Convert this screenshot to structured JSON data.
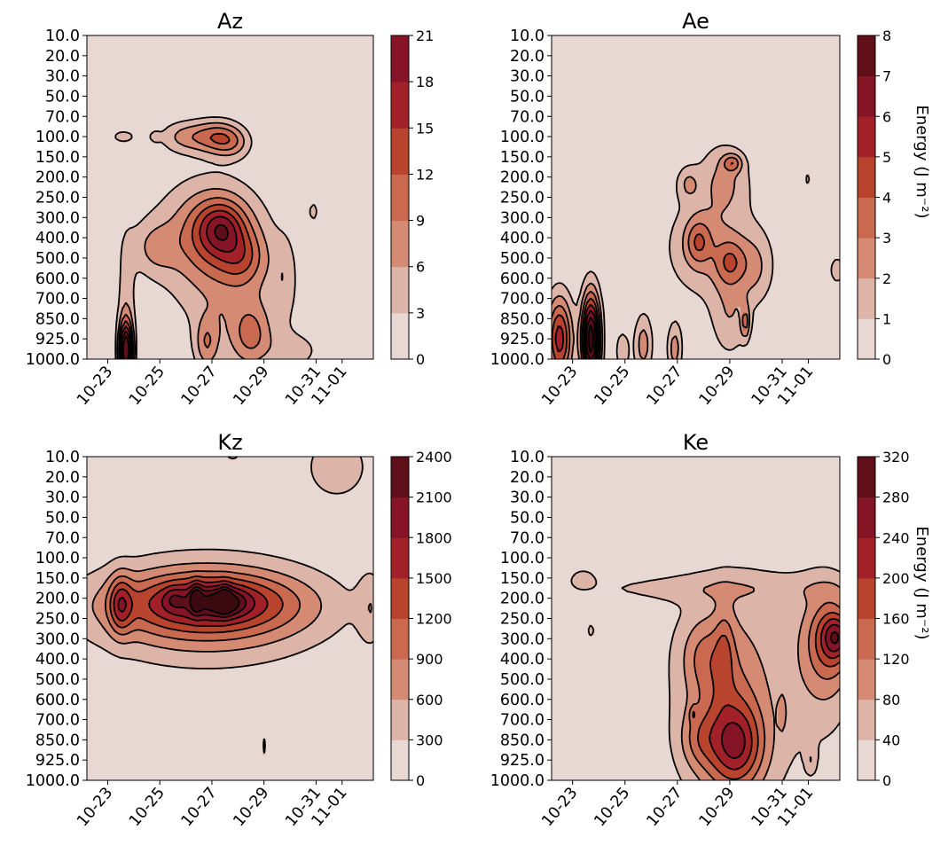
{
  "chart_data": [
    {
      "type": "heatmap",
      "title": "Az",
      "colorbar_ticks": [
        "0",
        "3",
        "6",
        "9",
        "12",
        "15",
        "18",
        "21"
      ],
      "colorbar_label": "",
      "pressure_ticks": [
        "10.0",
        "20.0",
        "30.0",
        "50.0",
        "70.0",
        "100.0",
        "150.0",
        "200.0",
        "250.0",
        "300.0",
        "400.0",
        "500.0",
        "600.0",
        "700.0",
        "850.0",
        "925.0",
        "1000.0"
      ],
      "date_ticks": [
        "10-23",
        "10-25",
        "10-27",
        "10-29",
        "10-31",
        "11-01"
      ],
      "date_positions": [
        0.8,
        2.8,
        4.8,
        6.8,
        8.8,
        9.8
      ],
      "x_range": [
        0,
        11
      ],
      "grid": [
        [
          0,
          0,
          0,
          0,
          0,
          0,
          0,
          0,
          0,
          0,
          0,
          0
        ],
        [
          0,
          0,
          0,
          0,
          0,
          0,
          0,
          0,
          0,
          0,
          0,
          0
        ],
        [
          0,
          0,
          0,
          0,
          0,
          0,
          0,
          0,
          0,
          0,
          0,
          0
        ],
        [
          0,
          0,
          0,
          0,
          0,
          0,
          0,
          0,
          0,
          0,
          0,
          0
        ],
        [
          0,
          0,
          0,
          0,
          0,
          0,
          0,
          0,
          0,
          0,
          0,
          0
        ],
        [
          0,
          0,
          0,
          0,
          0,
          0,
          0,
          0,
          0,
          0,
          0,
          0
        ],
        [
          0,
          0,
          0,
          0,
          0,
          0,
          0,
          0,
          0,
          0,
          0,
          0
        ],
        [
          0,
          0,
          0,
          0,
          0,
          0,
          0,
          0,
          0,
          0,
          0,
          0
        ],
        [
          0,
          0,
          0,
          0,
          0,
          0,
          0,
          0,
          0,
          0,
          0,
          0
        ],
        [
          0,
          0,
          0,
          0,
          0,
          0,
          0,
          0,
          0,
          0,
          0,
          0
        ],
        [
          0,
          0,
          0,
          0,
          0,
          0,
          0,
          0,
          0,
          0,
          0,
          0
        ],
        [
          0,
          0,
          0,
          0,
          0,
          0,
          0,
          0,
          0,
          0,
          0,
          0
        ],
        [
          0,
          0,
          0,
          0,
          0,
          0,
          0,
          0,
          0,
          0,
          0,
          0
        ],
        [
          0,
          0,
          0,
          0,
          0,
          0,
          0,
          0,
          0,
          0,
          0,
          0
        ],
        [
          0,
          0,
          0,
          0,
          0,
          0,
          0,
          0,
          0,
          0,
          0,
          0
        ],
        [
          0,
          0,
          0,
          0,
          0,
          0,
          0,
          0,
          0,
          0,
          0,
          0
        ],
        [
          0,
          0,
          0,
          0,
          0,
          0,
          0,
          0,
          0,
          0,
          0,
          0
        ]
      ],
      "blobs": [
        {
          "cx": 1.4,
          "cy": 5.0,
          "sx": 0.35,
          "sy": 0.25,
          "a": 4.5
        },
        {
          "cx": 2.6,
          "cy": 5.0,
          "sx": 0.15,
          "sy": 0.2,
          "a": 3.5
        },
        {
          "cx": 3.8,
          "cy": 5.0,
          "sx": 0.7,
          "sy": 0.55,
          "a": 6.5
        },
        {
          "cx": 5.0,
          "cy": 5.0,
          "sx": 0.6,
          "sy": 0.6,
          "a": 8.5
        },
        {
          "cx": 5.6,
          "cy": 5.3,
          "sx": 0.5,
          "sy": 0.55,
          "a": 5.5
        },
        {
          "cx": 4.5,
          "cy": 10.0,
          "sx": 1.6,
          "sy": 2.2,
          "a": 6.0
        },
        {
          "cx": 5.0,
          "cy": 9.7,
          "sx": 0.9,
          "sy": 1.3,
          "a": 8.0
        },
        {
          "cx": 5.2,
          "cy": 9.5,
          "sx": 0.55,
          "sy": 0.8,
          "a": 6.5
        },
        {
          "cx": 6.0,
          "cy": 11.0,
          "sx": 0.6,
          "sy": 0.9,
          "a": 5.5
        },
        {
          "cx": 2.6,
          "cy": 10.5,
          "sx": 0.6,
          "sy": 0.9,
          "a": 4.5
        },
        {
          "cx": 1.5,
          "cy": 14.0,
          "sx": 0.25,
          "sy": 2.8,
          "a": 4.5
        },
        {
          "cx": 1.5,
          "cy": 15.6,
          "sx": 0.18,
          "sy": 1.0,
          "a": 22.0
        },
        {
          "cx": 5.8,
          "cy": 13.5,
          "sx": 1.4,
          "sy": 2.8,
          "a": 4.5
        },
        {
          "cx": 6.3,
          "cy": 14.8,
          "sx": 0.5,
          "sy": 1.0,
          "a": 6.5
        },
        {
          "cx": 4.6,
          "cy": 15.2,
          "sx": 0.3,
          "sy": 0.9,
          "a": 6.5
        },
        {
          "cx": 8.7,
          "cy": 8.7,
          "sx": 0.15,
          "sy": 0.4,
          "a": 4.0
        },
        {
          "cx": 7.6,
          "cy": 12.0,
          "sx": 0.3,
          "sy": 1.4,
          "a": 3.5
        },
        {
          "cx": 8.0,
          "cy": 15.6,
          "sx": 0.8,
          "sy": 0.7,
          "a": 3.5
        }
      ],
      "levels": [
        0,
        3,
        6,
        9,
        12,
        15,
        18,
        21
      ]
    },
    {
      "type": "heatmap",
      "title": "Ae",
      "colorbar_ticks": [
        "0",
        "1",
        "2",
        "3",
        "4",
        "5",
        "6",
        "7",
        "8"
      ],
      "colorbar_label": "Energy  (J m⁻²)",
      "pressure_ticks": [
        "10.0",
        "20.0",
        "30.0",
        "50.0",
        "70.0",
        "100.0",
        "150.0",
        "200.0",
        "250.0",
        "300.0",
        "400.0",
        "500.0",
        "600.0",
        "700.0",
        "850.0",
        "925.0",
        "1000.0"
      ],
      "date_ticks": [
        "10-23",
        "10-25",
        "10-27",
        "10-29",
        "10-31",
        "11-01"
      ],
      "date_positions": [
        0.8,
        2.8,
        4.8,
        6.8,
        8.8,
        9.8
      ],
      "x_range": [
        0,
        11
      ],
      "blobs": [
        {
          "cx": 6.6,
          "cy": 7.0,
          "sx": 0.7,
          "sy": 1.3,
          "a": 1.9
        },
        {
          "cx": 6.9,
          "cy": 6.3,
          "sx": 0.25,
          "sy": 0.3,
          "a": 2.4
        },
        {
          "cx": 5.2,
          "cy": 7.3,
          "sx": 0.3,
          "sy": 0.6,
          "a": 1.6
        },
        {
          "cx": 6.0,
          "cy": 10.5,
          "sx": 1.3,
          "sy": 2.0,
          "a": 1.9
        },
        {
          "cx": 5.6,
          "cy": 10.2,
          "sx": 0.35,
          "sy": 0.8,
          "a": 2.5
        },
        {
          "cx": 6.8,
          "cy": 11.2,
          "sx": 0.4,
          "sy": 0.8,
          "a": 2.4
        },
        {
          "cx": 7.8,
          "cy": 11.5,
          "sx": 0.5,
          "sy": 1.3,
          "a": 1.6
        },
        {
          "cx": 6.8,
          "cy": 14.0,
          "sx": 0.5,
          "sy": 1.5,
          "a": 1.6
        },
        {
          "cx": 7.4,
          "cy": 14.2,
          "sx": 0.12,
          "sy": 0.6,
          "a": 2.5
        },
        {
          "cx": 0.3,
          "cy": 15.0,
          "sx": 0.35,
          "sy": 1.5,
          "a": 5.5
        },
        {
          "cx": 1.5,
          "cy": 15.0,
          "sx": 0.25,
          "sy": 1.6,
          "a": 8.8
        },
        {
          "cx": 2.7,
          "cy": 15.6,
          "sx": 0.2,
          "sy": 0.8,
          "a": 1.7
        },
        {
          "cx": 3.5,
          "cy": 15.3,
          "sx": 0.25,
          "sy": 1.1,
          "a": 2.5
        },
        {
          "cx": 4.7,
          "cy": 15.5,
          "sx": 0.2,
          "sy": 0.9,
          "a": 2.5
        },
        {
          "cx": 9.8,
          "cy": 7.1,
          "sx": 0.08,
          "sy": 0.35,
          "a": 1.5
        },
        {
          "cx": 10.9,
          "cy": 11.6,
          "sx": 0.25,
          "sy": 0.6,
          "a": 1.5
        }
      ],
      "levels": [
        0,
        1,
        2,
        3,
        4,
        5,
        6,
        7,
        8
      ]
    },
    {
      "type": "heatmap",
      "title": "Kz",
      "colorbar_ticks": [
        "0",
        "300",
        "600",
        "900",
        "1200",
        "1500",
        "1800",
        "2100",
        "2400"
      ],
      "colorbar_label": "",
      "pressure_ticks": [
        "10.0",
        "20.0",
        "30.0",
        "50.0",
        "70.0",
        "100.0",
        "150.0",
        "200.0",
        "250.0",
        "300.0",
        "400.0",
        "500.0",
        "600.0",
        "700.0",
        "850.0",
        "925.0",
        "1000.0"
      ],
      "date_ticks": [
        "10-23",
        "10-25",
        "10-27",
        "10-29",
        "10-31",
        "11-01"
      ],
      "date_positions": [
        0.8,
        2.8,
        4.8,
        6.8,
        8.8,
        9.8
      ],
      "x_range": [
        0,
        11
      ],
      "blobs": [
        {
          "cx": 4.6,
          "cy": 7.6,
          "sx": 3.2,
          "sy": 1.9,
          "a": 900
        },
        {
          "cx": 4.6,
          "cy": 7.3,
          "sx": 2.7,
          "sy": 1.1,
          "a": 900
        },
        {
          "cx": 4.8,
          "cy": 7.1,
          "sx": 1.6,
          "sy": 0.7,
          "a": 500
        },
        {
          "cx": 4.2,
          "cy": 7.0,
          "sx": 0.15,
          "sy": 0.5,
          "a": 800
        },
        {
          "cx": 5.3,
          "cy": 7.0,
          "sx": 0.15,
          "sy": 0.5,
          "a": 500
        },
        {
          "cx": 5.3,
          "cy": 7.2,
          "sx": 0.5,
          "sy": 0.45,
          "a": 700
        },
        {
          "cx": 3.3,
          "cy": 7.0,
          "sx": 0.25,
          "sy": 0.4,
          "a": 300
        },
        {
          "cx": 1.3,
          "cy": 7.3,
          "sx": 0.3,
          "sy": 1.0,
          "a": 900
        },
        {
          "cx": 9.6,
          "cy": 0.5,
          "sx": 1.2,
          "sy": 1.6,
          "a": 420
        },
        {
          "cx": 10.9,
          "cy": 7.5,
          "sx": 0.35,
          "sy": 1.4,
          "a": 420
        },
        {
          "cx": 5.6,
          "cy": 0.0,
          "sx": 0.4,
          "sy": 0.3,
          "a": 330
        },
        {
          "cx": 6.8,
          "cy": 14.3,
          "sx": 0.05,
          "sy": 0.5,
          "a": 400
        }
      ],
      "levels": [
        0,
        300,
        600,
        900,
        1200,
        1500,
        1800,
        2100,
        2400
      ]
    },
    {
      "type": "heatmap",
      "title": "Ke",
      "colorbar_ticks": [
        "0",
        "40",
        "80",
        "120",
        "160",
        "200",
        "240",
        "280",
        "320"
      ],
      "colorbar_label": "Energy  (J m⁻²)",
      "pressure_ticks": [
        "10.0",
        "20.0",
        "30.0",
        "50.0",
        "70.0",
        "100.0",
        "150.0",
        "200.0",
        "250.0",
        "300.0",
        "400.0",
        "500.0",
        "600.0",
        "700.0",
        "850.0",
        "925.0",
        "1000.0"
      ],
      "date_ticks": [
        "10-23",
        "10-25",
        "10-27",
        "10-29",
        "10-31",
        "11-01"
      ],
      "date_positions": [
        0.8,
        2.8,
        4.8,
        6.8,
        8.8,
        9.8
      ],
      "x_range": [
        0,
        11
      ],
      "blobs": [
        {
          "cx": 7.2,
          "cy": 11.5,
          "sx": 2.2,
          "sy": 4.8,
          "a": 70
        },
        {
          "cx": 6.6,
          "cy": 13.0,
          "sx": 0.9,
          "sy": 3.0,
          "a": 80
        },
        {
          "cx": 7.1,
          "cy": 14.3,
          "sx": 0.7,
          "sy": 1.4,
          "a": 140
        },
        {
          "cx": 5.8,
          "cy": 9.8,
          "sx": 0.6,
          "sy": 1.2,
          "a": 60
        },
        {
          "cx": 6.6,
          "cy": 9.5,
          "sx": 0.25,
          "sy": 1.5,
          "a": 60
        },
        {
          "cx": 5.6,
          "cy": 14.0,
          "sx": 0.5,
          "sy": 1.0,
          "a": 60
        },
        {
          "cx": 10.5,
          "cy": 9.5,
          "sx": 0.8,
          "sy": 2.6,
          "a": 80
        },
        {
          "cx": 10.7,
          "cy": 9.0,
          "sx": 0.6,
          "sy": 1.3,
          "a": 100
        },
        {
          "cx": 10.9,
          "cy": 8.9,
          "sx": 0.35,
          "sy": 0.7,
          "a": 110
        },
        {
          "cx": 5.5,
          "cy": 6.5,
          "sx": 5.5,
          "sy": 0.5,
          "a": 40
        },
        {
          "cx": 1.2,
          "cy": 6.0,
          "sx": 0.3,
          "sy": 0.3,
          "a": 60
        },
        {
          "cx": 1.5,
          "cy": 8.6,
          "sx": 0.15,
          "sy": 0.35,
          "a": 50
        },
        {
          "cx": 5.4,
          "cy": 12.7,
          "sx": 0.1,
          "sy": 0.3,
          "a": 55
        },
        {
          "cx": 8.8,
          "cy": 12.7,
          "sx": 0.1,
          "sy": 0.6,
          "a": 55
        },
        {
          "cx": 9.9,
          "cy": 15.0,
          "sx": 0.15,
          "sy": 0.5,
          "a": 50
        }
      ],
      "levels": [
        0,
        40,
        80,
        120,
        160,
        200,
        240,
        280,
        320
      ]
    }
  ],
  "colors": {
    "levels": [
      "#e8d8d4",
      "#ddb5a8",
      "#d58a73",
      "#c96a50",
      "#b8442e",
      "#a22129",
      "#851526",
      "#5e0f1a",
      "#3b0a10"
    ]
  }
}
